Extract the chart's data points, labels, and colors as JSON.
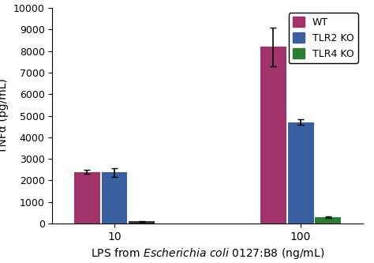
{
  "groups": [
    "10",
    "100"
  ],
  "series": [
    "WT",
    "TLR2 KO",
    "TLR4 KO"
  ],
  "values": [
    [
      2400,
      2380,
      100
    ],
    [
      8200,
      4700,
      280
    ]
  ],
  "errors": [
    [
      80,
      200,
      30
    ],
    [
      900,
      120,
      40
    ]
  ],
  "colors": [
    "#a0336a",
    "#3a5fa0",
    "#2e7d32"
  ],
  "color_tlr4_10": "#333333",
  "ylabel": "TNFα (pg/mL)",
  "ylim": [
    0,
    10000
  ],
  "yticks": [
    0,
    1000,
    2000,
    3000,
    4000,
    5000,
    6000,
    7000,
    8000,
    9000,
    10000
  ],
  "legend_labels": [
    "WT",
    "TLR2 KO",
    "TLR4 KO"
  ],
  "bar_width": 0.22,
  "group_positions": [
    1.0,
    2.5
  ],
  "figsize": [
    4.74,
    3.33
  ],
  "dpi": 100
}
